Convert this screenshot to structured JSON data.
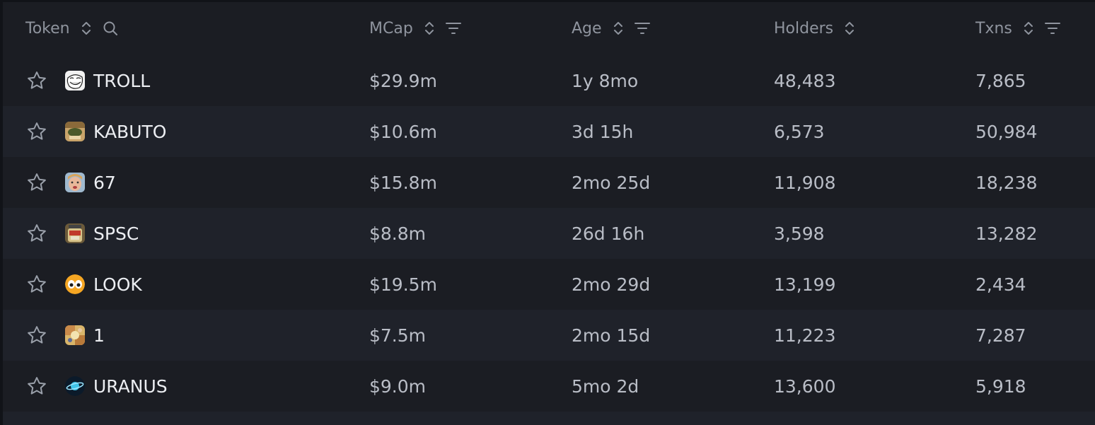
{
  "header": {
    "columns": [
      {
        "label": "Token",
        "sortable": true,
        "search": true,
        "filter": false
      },
      {
        "label": "MCap",
        "sortable": true,
        "search": false,
        "filter": true
      },
      {
        "label": "Age",
        "sortable": true,
        "search": false,
        "filter": true
      },
      {
        "label": "Holders",
        "sortable": true,
        "search": false,
        "filter": false
      },
      {
        "label": "Txns",
        "sortable": true,
        "search": false,
        "filter": true
      }
    ]
  },
  "rows": [
    {
      "symbol": "TROLL",
      "icon": "troll-face-icon",
      "mcap": "$29.9m",
      "age": "1y 8mo",
      "holders": "48,483",
      "txns": "7,865"
    },
    {
      "symbol": "KABUTO",
      "icon": "kabuto-icon",
      "mcap": "$10.6m",
      "age": "3d 15h",
      "holders": "6,573",
      "txns": "50,984"
    },
    {
      "symbol": "67",
      "icon": "face-photo-icon",
      "mcap": "$15.8m",
      "age": "2mo 25d",
      "holders": "11,908",
      "txns": "18,238"
    },
    {
      "symbol": "SPSC",
      "icon": "jar-label-icon",
      "mcap": "$8.8m",
      "age": "26d 16h",
      "holders": "3,598",
      "txns": "13,282"
    },
    {
      "symbol": "LOOK",
      "icon": "eyes-icon",
      "mcap": "$19.5m",
      "age": "2mo 29d",
      "holders": "13,199",
      "txns": "2,434"
    },
    {
      "symbol": "1",
      "icon": "collage-icon",
      "mcap": "$7.5m",
      "age": "2mo 15d",
      "holders": "11,223",
      "txns": "7,287"
    },
    {
      "symbol": "URANUS",
      "icon": "planet-icon",
      "mcap": "$9.0m",
      "age": "5mo 2d",
      "holders": "13,600",
      "txns": "5,918"
    }
  ],
  "colors": {
    "background": "#1b1d23",
    "row_alt": "#1f222a",
    "header_text": "#8f949e",
    "cell_text": "#b9bdc6",
    "symbol_text": "#eceef2"
  }
}
